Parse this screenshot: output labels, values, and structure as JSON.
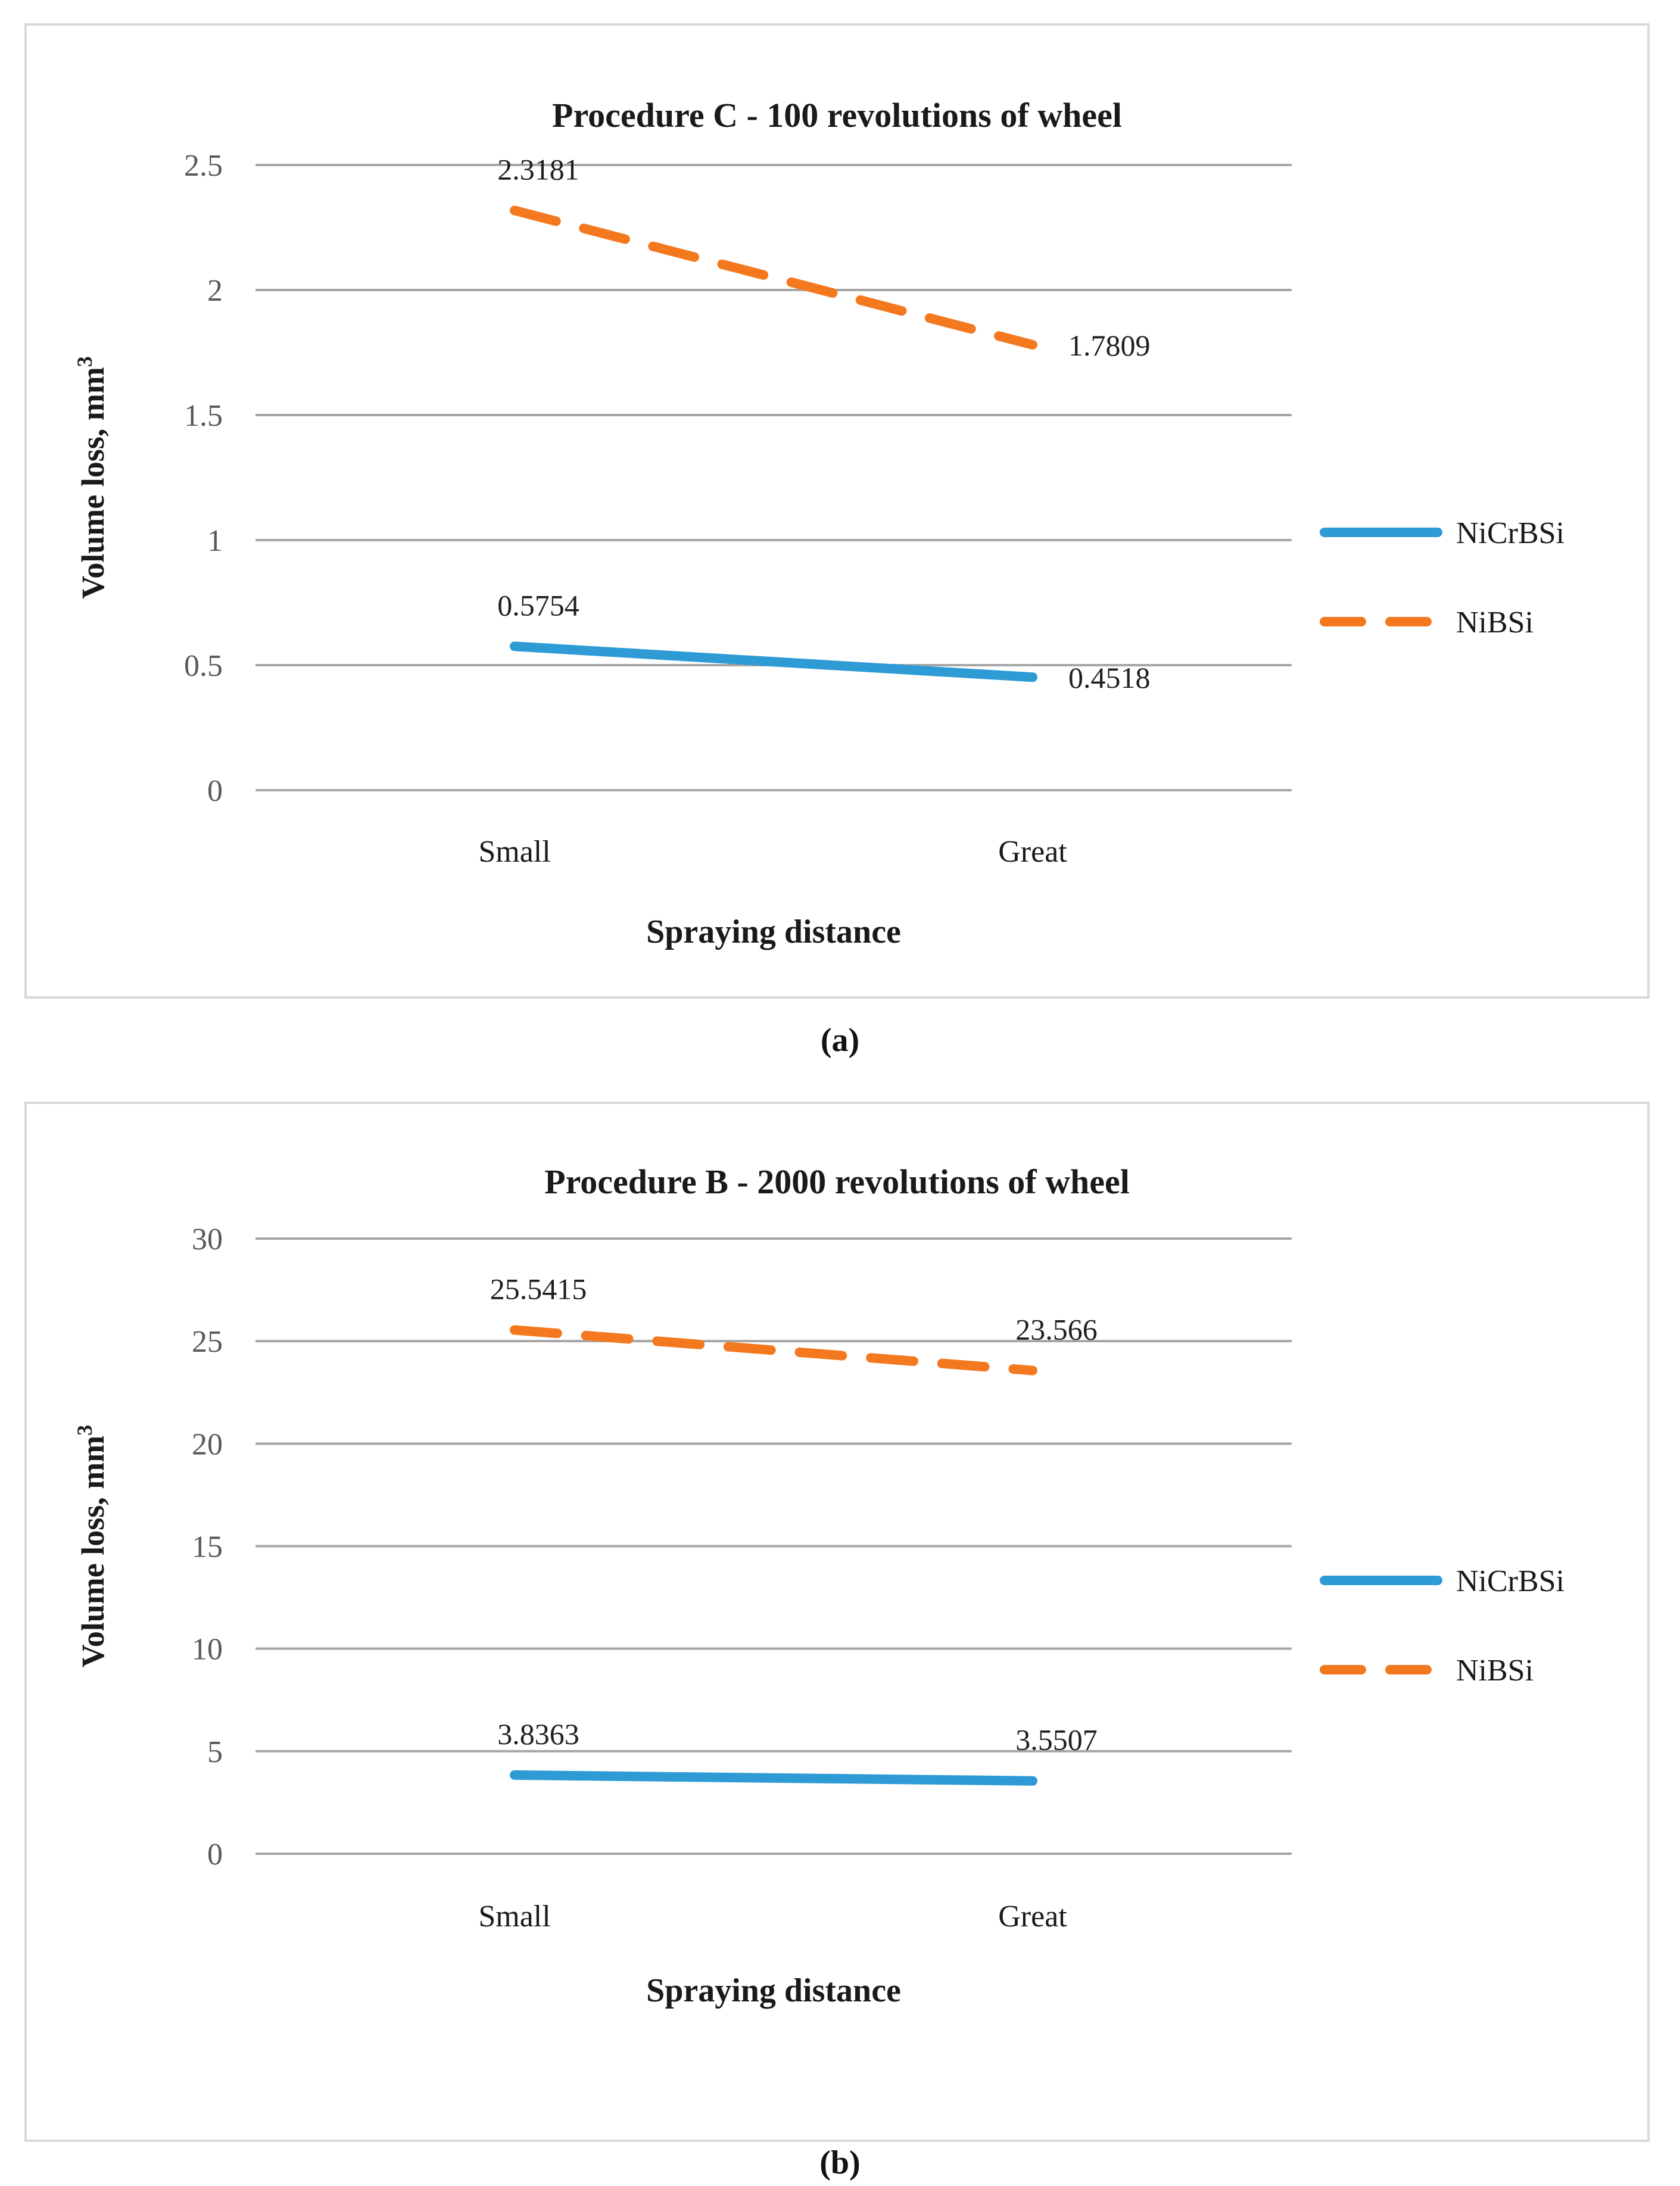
{
  "captions": {
    "a": "(a)",
    "b": "(b)"
  },
  "colors": {
    "nicrbsi_blue": "#2E9BD5",
    "nibsi_orange": "#F4791E",
    "gridline": "#A6A6A6",
    "panel_border": "#D9D9D9",
    "tick_text": "#595959",
    "text": "#1A1A1A"
  },
  "chart_data": [
    {
      "type": "line",
      "panel": "a",
      "title": "Procedure C - 100 revolutions of wheel",
      "categories": [
        "Small",
        "Great"
      ],
      "xlabel": "Spraying distance",
      "ylabel": "Volume loss, mm³",
      "ylim": [
        0,
        2.5
      ],
      "yticks": [
        "0",
        "0.5",
        "1",
        "1.5",
        "2",
        "2.5"
      ],
      "grid": true,
      "legend_position": "right",
      "series": [
        {
          "name": "NiCrBSi",
          "style": "solid",
          "color_key": "nicrbsi_blue",
          "values": [
            0.5754,
            0.4518
          ],
          "labels": [
            "0.5754",
            "0.4518"
          ],
          "label_pos": [
            "above",
            "right"
          ]
        },
        {
          "name": "NiBSi",
          "style": "dashed",
          "color_key": "nibsi_orange",
          "values": [
            2.3181,
            1.7809
          ],
          "labels": [
            "2.3181",
            "1.7809"
          ],
          "label_pos": [
            "above",
            "right"
          ]
        }
      ]
    },
    {
      "type": "line",
      "panel": "b",
      "title": "Procedure B - 2000 revolutions of wheel",
      "categories": [
        "Small",
        "Great"
      ],
      "xlabel": "Spraying distance",
      "ylabel": "Volume loss, mm³",
      "ylim": [
        0,
        30
      ],
      "yticks": [
        "0",
        "5",
        "10",
        "15",
        "20",
        "25",
        "30"
      ],
      "grid": true,
      "legend_position": "right",
      "series": [
        {
          "name": "NiCrBSi",
          "style": "solid",
          "color_key": "nicrbsi_blue",
          "values": [
            3.8363,
            3.5507
          ],
          "labels": [
            "3.8363",
            "3.5507"
          ],
          "label_pos": [
            "above",
            "above"
          ]
        },
        {
          "name": "NiBSi",
          "style": "dashed",
          "color_key": "nibsi_orange",
          "values": [
            25.5415,
            23.566
          ],
          "labels": [
            "25.5415",
            "23.566"
          ],
          "label_pos": [
            "above",
            "above"
          ]
        }
      ]
    }
  ]
}
